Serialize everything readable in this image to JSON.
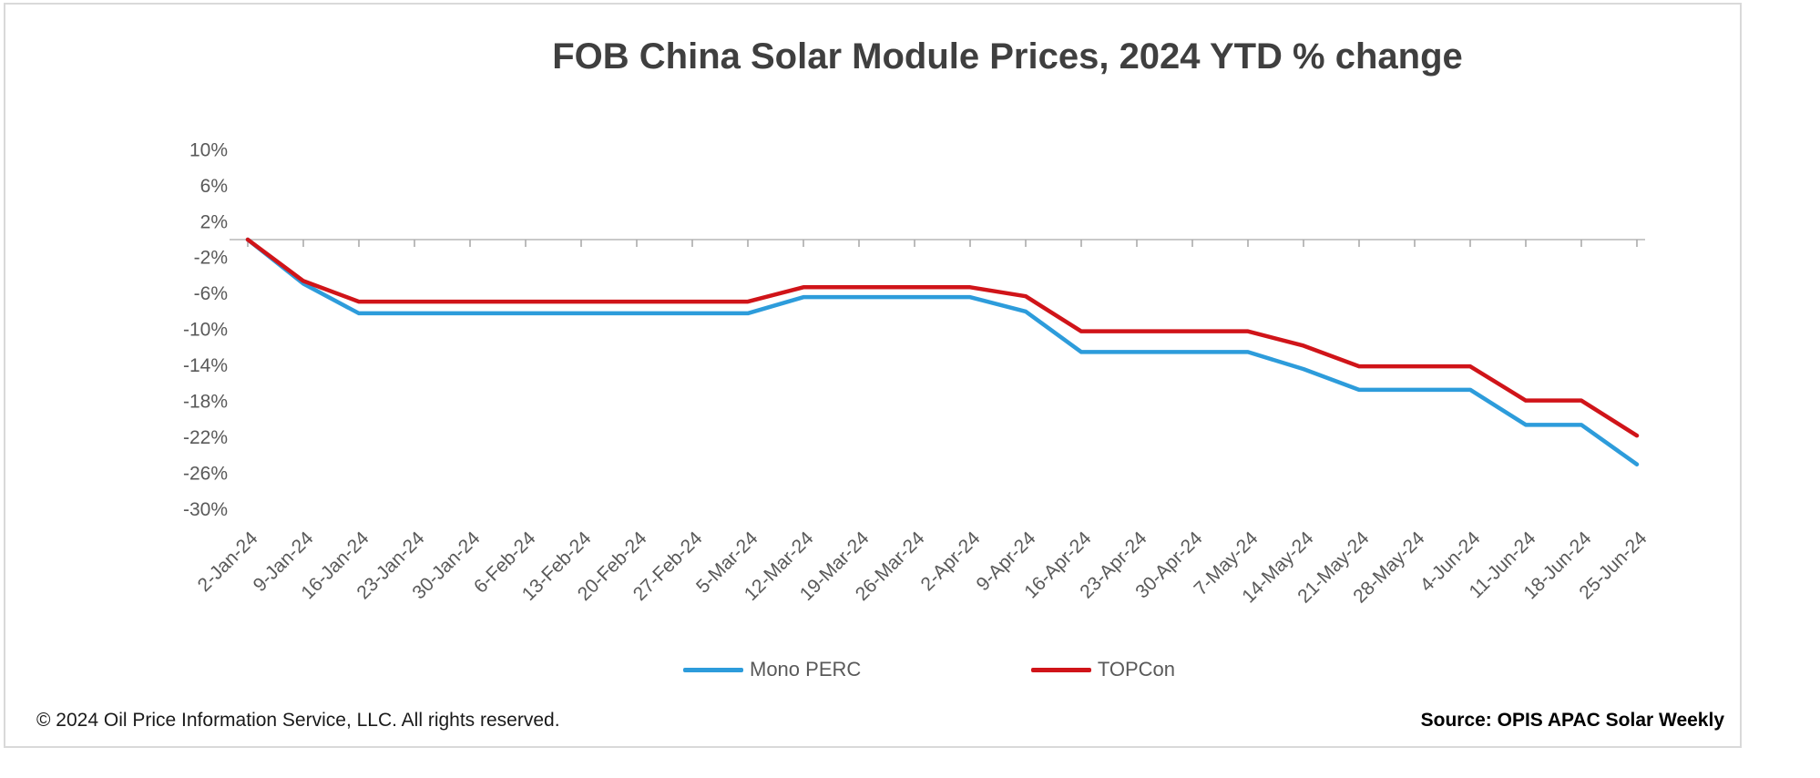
{
  "chart_data": {
    "type": "line",
    "title": "FOB China Solar Module Prices, 2024 YTD % change",
    "categories": [
      "2-Jan-24",
      "9-Jan-24",
      "16-Jan-24",
      "23-Jan-24",
      "30-Jan-24",
      "6-Feb-24",
      "13-Feb-24",
      "20-Feb-24",
      "27-Feb-24",
      "5-Mar-24",
      "12-Mar-24",
      "19-Mar-24",
      "26-Mar-24",
      "2-Apr-24",
      "9-Apr-24",
      "16-Apr-24",
      "23-Apr-24",
      "30-Apr-24",
      "7-May-24",
      "14-May-24",
      "21-May-24",
      "28-May-24",
      "4-Jun-24",
      "11-Jun-24",
      "18-Jun-24",
      "25-Jun-24"
    ],
    "series": [
      {
        "name": "Mono PERC",
        "color": "#2D9CDB",
        "values": [
          0,
          -4.9,
          -8.2,
          -8.2,
          -8.2,
          -8.2,
          -8.2,
          -8.2,
          -8.2,
          -8.2,
          -6.4,
          -6.4,
          -6.4,
          -6.4,
          -8.0,
          -12.5,
          -12.5,
          -12.5,
          -12.5,
          -14.4,
          -16.7,
          -16.7,
          -16.7,
          -20.6,
          -20.6,
          -25.0
        ]
      },
      {
        "name": "TOPCon",
        "color": "#D01419",
        "values": [
          0,
          -4.6,
          -6.9,
          -6.9,
          -6.9,
          -6.9,
          -6.9,
          -6.9,
          -6.9,
          -6.9,
          -5.3,
          -5.3,
          -5.3,
          -5.3,
          -6.3,
          -10.2,
          -10.2,
          -10.2,
          -10.2,
          -11.8,
          -14.1,
          -14.1,
          -14.1,
          -17.9,
          -17.9,
          -21.8
        ]
      }
    ],
    "ylim": [
      -30,
      10
    ],
    "yticks": [
      10,
      6,
      2,
      -2,
      -6,
      -10,
      -14,
      -18,
      -22,
      -26,
      -30
    ],
    "ytick_labels": [
      "10%",
      "6%",
      "2%",
      "-2%",
      "-6%",
      "-10%",
      "-14%",
      "-18%",
      "-22%",
      "-26%",
      "-30%"
    ],
    "xlabel": "",
    "ylabel": "",
    "grid": false,
    "x_axis_at_zero": true,
    "legend_position": "bottom"
  },
  "footer": {
    "copyright": "© 2024 Oil Price Information Service, LLC. All rights reserved.",
    "source": "Source: OPIS APAC Solar Weekly"
  },
  "colors": {
    "axis_line": "#C9C9C9",
    "tick_mark": "#ABABAB",
    "tick_text": "#595959",
    "title_text": "#3F3F3F",
    "frame_border": "#D9D9D9"
  }
}
